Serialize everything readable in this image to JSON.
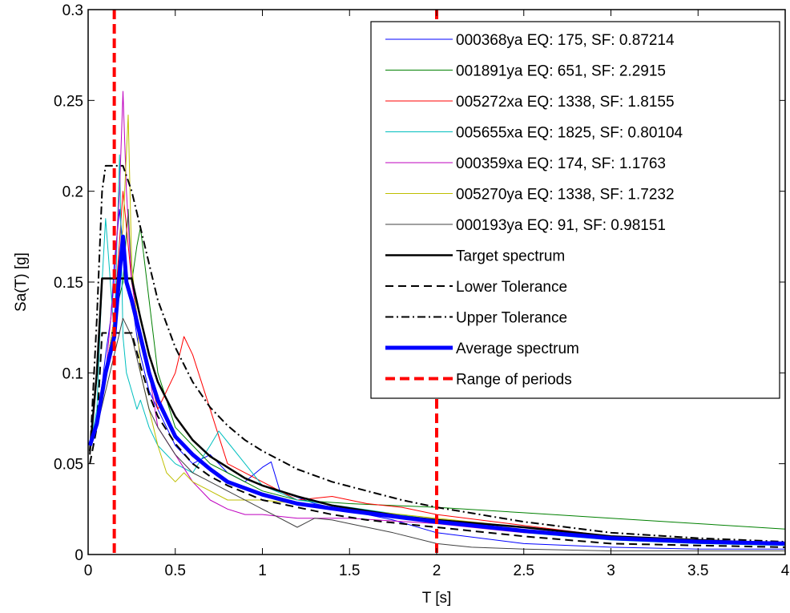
{
  "chart_data": {
    "type": "line",
    "xlabel": "T [s]",
    "ylabel": "Sa(T) [g]",
    "xlim": [
      0,
      4
    ],
    "ylim": [
      0,
      0.3
    ],
    "x_ticks": [
      0,
      0.5,
      1,
      1.5,
      2,
      2.5,
      3,
      3.5,
      4
    ],
    "x_tick_labels": [
      "0",
      "0.5",
      "1",
      "1.5",
      "2",
      "2.5",
      "3",
      "3.5",
      "4"
    ],
    "y_ticks": [
      0,
      0.05,
      0.1,
      0.15,
      0.2,
      0.25,
      0.3
    ],
    "y_tick_labels": [
      "0",
      "0.05",
      "0.1",
      "0.15",
      "0.2",
      "0.25",
      "0.3"
    ],
    "grid": false,
    "legend_position": "top-right",
    "series": [
      {
        "name": "000368ya EQ: 175, SF: 0.87214",
        "color": "#0000ff",
        "style": "solid",
        "width": 1,
        "x": [
          0.01,
          0.05,
          0.1,
          0.13,
          0.15,
          0.18,
          0.2,
          0.22,
          0.25,
          0.28,
          0.3,
          0.35,
          0.4,
          0.45,
          0.5,
          0.55,
          0.6,
          0.7,
          0.8,
          0.9,
          1.0,
          1.05,
          1.1,
          1.3,
          1.5,
          1.75,
          2.0,
          2.5,
          3.0,
          3.5,
          4.0
        ],
        "y": [
          0.06,
          0.07,
          0.11,
          0.13,
          0.16,
          0.19,
          0.17,
          0.15,
          0.14,
          0.12,
          0.11,
          0.09,
          0.08,
          0.07,
          0.06,
          0.055,
          0.05,
          0.055,
          0.045,
          0.04,
          0.048,
          0.051,
          0.035,
          0.028,
          0.024,
          0.019,
          0.012,
          0.006,
          0.004,
          0.003,
          0.003
        ]
      },
      {
        "name": "001891ya EQ: 651, SF: 2.2915",
        "color": "#008000",
        "style": "solid",
        "width": 1,
        "x": [
          0.01,
          0.05,
          0.1,
          0.15,
          0.2,
          0.23,
          0.25,
          0.28,
          0.3,
          0.35,
          0.4,
          0.5,
          0.6,
          0.7,
          0.8,
          1.0,
          1.2,
          1.5,
          2.0,
          2.5,
          3.0,
          3.5,
          4.0
        ],
        "y": [
          0.06,
          0.075,
          0.1,
          0.13,
          0.15,
          0.19,
          0.15,
          0.17,
          0.18,
          0.14,
          0.1,
          0.07,
          0.06,
          0.05,
          0.045,
          0.035,
          0.03,
          0.028,
          0.026,
          0.023,
          0.02,
          0.017,
          0.014
        ]
      },
      {
        "name": "005272xa EQ: 1338, SF: 1.8155",
        "color": "#ff0000",
        "style": "solid",
        "width": 1,
        "x": [
          0.01,
          0.05,
          0.1,
          0.15,
          0.2,
          0.25,
          0.3,
          0.35,
          0.4,
          0.45,
          0.5,
          0.55,
          0.6,
          0.7,
          0.8,
          1.0,
          1.2,
          1.4,
          1.6,
          1.8,
          2.0,
          2.5,
          3.0,
          3.5,
          4.0
        ],
        "y": [
          0.06,
          0.07,
          0.1,
          0.13,
          0.2,
          0.15,
          0.12,
          0.1,
          0.08,
          0.09,
          0.1,
          0.12,
          0.11,
          0.08,
          0.05,
          0.04,
          0.03,
          0.032,
          0.028,
          0.026,
          0.022,
          0.016,
          0.01,
          0.008,
          0.006
        ]
      },
      {
        "name": "005655xa EQ: 1825, SF: 0.80104",
        "color": "#00bfbf",
        "style": "solid",
        "width": 1,
        "x": [
          0.01,
          0.05,
          0.08,
          0.1,
          0.12,
          0.15,
          0.18,
          0.2,
          0.22,
          0.25,
          0.28,
          0.3,
          0.35,
          0.4,
          0.5,
          0.6,
          0.7,
          0.75,
          0.8,
          0.9,
          1.0,
          1.2,
          1.5,
          2.0,
          2.5,
          3.0,
          3.5,
          4.0
        ],
        "y": [
          0.06,
          0.08,
          0.15,
          0.185,
          0.16,
          0.12,
          0.22,
          0.12,
          0.1,
          0.09,
          0.08,
          0.085,
          0.07,
          0.06,
          0.05,
          0.045,
          0.06,
          0.068,
          0.062,
          0.05,
          0.038,
          0.03,
          0.026,
          0.019,
          0.012,
          0.008,
          0.006,
          0.005
        ]
      },
      {
        "name": "000359xa EQ: 174, SF: 1.1763",
        "color": "#bf00bf",
        "style": "solid",
        "width": 1,
        "x": [
          0.01,
          0.05,
          0.1,
          0.15,
          0.18,
          0.2,
          0.22,
          0.25,
          0.3,
          0.35,
          0.4,
          0.5,
          0.6,
          0.7,
          0.8,
          0.9,
          1.0,
          1.2,
          1.5,
          2.0,
          2.5,
          3.0,
          3.5,
          4.0
        ],
        "y": [
          0.06,
          0.07,
          0.1,
          0.15,
          0.2,
          0.255,
          0.2,
          0.15,
          0.12,
          0.1,
          0.07,
          0.055,
          0.04,
          0.03,
          0.025,
          0.022,
          0.022,
          0.02,
          0.02,
          0.017,
          0.012,
          0.009,
          0.007,
          0.006
        ]
      },
      {
        "name": "005270ya EQ: 1338, SF: 1.7232",
        "color": "#bfbf00",
        "style": "solid",
        "width": 1,
        "x": [
          0.01,
          0.05,
          0.1,
          0.15,
          0.2,
          0.23,
          0.25,
          0.28,
          0.3,
          0.35,
          0.4,
          0.45,
          0.5,
          0.55,
          0.6,
          0.7,
          0.8,
          1.0,
          1.2,
          1.5,
          2.0,
          2.5,
          3.0,
          3.5,
          4.0
        ],
        "y": [
          0.06,
          0.07,
          0.1,
          0.13,
          0.18,
          0.242,
          0.16,
          0.13,
          0.1,
          0.08,
          0.06,
          0.045,
          0.04,
          0.045,
          0.04,
          0.035,
          0.03,
          0.03,
          0.028,
          0.025,
          0.02,
          0.015,
          0.01,
          0.008,
          0.006
        ]
      },
      {
        "name": "000193ya EQ: 91, SF: 0.98151",
        "color": "#404040",
        "style": "solid",
        "width": 1,
        "x": [
          0.01,
          0.05,
          0.1,
          0.15,
          0.2,
          0.25,
          0.3,
          0.35,
          0.4,
          0.5,
          0.6,
          0.7,
          0.8,
          1.0,
          1.2,
          1.3,
          1.4,
          1.5,
          1.75,
          2.0,
          2.2,
          2.5,
          3.0,
          3.5,
          4.0
        ],
        "y": [
          0.06,
          0.07,
          0.09,
          0.11,
          0.13,
          0.12,
          0.1,
          0.08,
          0.07,
          0.055,
          0.045,
          0.04,
          0.035,
          0.025,
          0.015,
          0.02,
          0.019,
          0.017,
          0.012,
          0.006,
          0.004,
          0.003,
          0.002,
          0.002,
          0.002
        ]
      },
      {
        "name": "Target spectrum",
        "color": "#000000",
        "style": "solid",
        "width": 2.5,
        "x": [
          0.01,
          0.05,
          0.08,
          0.1,
          0.15,
          0.2,
          0.25,
          0.3,
          0.35,
          0.4,
          0.5,
          0.6,
          0.7,
          0.8,
          0.9,
          1.0,
          1.2,
          1.4,
          1.6,
          1.8,
          2.0,
          2.5,
          3.0,
          3.5,
          4.0
        ],
        "y": [
          0.057,
          0.1,
          0.152,
          0.152,
          0.152,
          0.152,
          0.152,
          0.13,
          0.11,
          0.095,
          0.076,
          0.063,
          0.054,
          0.048,
          0.042,
          0.038,
          0.032,
          0.027,
          0.024,
          0.021,
          0.019,
          0.015,
          0.01,
          0.008,
          0.006
        ]
      },
      {
        "name": "Lower Tolerance",
        "color": "#000000",
        "style": "dashed",
        "width": 2,
        "x": [
          0.01,
          0.05,
          0.08,
          0.1,
          0.15,
          0.2,
          0.25,
          0.3,
          0.35,
          0.4,
          0.5,
          0.6,
          0.7,
          0.8,
          0.9,
          1.0,
          1.2,
          1.4,
          1.6,
          1.8,
          2.0,
          2.5,
          3.0,
          3.5,
          4.0
        ],
        "y": [
          0.05,
          0.07,
          0.122,
          0.122,
          0.122,
          0.122,
          0.122,
          0.104,
          0.088,
          0.076,
          0.061,
          0.05,
          0.043,
          0.038,
          0.034,
          0.03,
          0.026,
          0.022,
          0.019,
          0.017,
          0.015,
          0.01,
          0.006,
          0.005,
          0.004
        ]
      },
      {
        "name": "Upper Tolerance",
        "color": "#000000",
        "style": "dashdot",
        "width": 2,
        "x": [
          0.01,
          0.05,
          0.08,
          0.1,
          0.15,
          0.2,
          0.25,
          0.3,
          0.35,
          0.4,
          0.5,
          0.6,
          0.7,
          0.8,
          0.9,
          1.0,
          1.2,
          1.4,
          1.6,
          1.8,
          2.0,
          2.5,
          3.0,
          3.5,
          4.0
        ],
        "y": [
          0.055,
          0.13,
          0.2,
          0.214,
          0.214,
          0.214,
          0.2,
          0.18,
          0.16,
          0.14,
          0.114,
          0.095,
          0.081,
          0.071,
          0.063,
          0.057,
          0.047,
          0.04,
          0.035,
          0.03,
          0.026,
          0.018,
          0.012,
          0.009,
          0.007
        ]
      },
      {
        "name": "Average spectrum",
        "color": "#0000ff",
        "style": "solid",
        "width": 5,
        "x": [
          0.01,
          0.05,
          0.1,
          0.15,
          0.18,
          0.2,
          0.22,
          0.25,
          0.3,
          0.35,
          0.4,
          0.5,
          0.6,
          0.7,
          0.8,
          1.0,
          1.2,
          1.5,
          2.0,
          2.5,
          3.0,
          3.5,
          4.0
        ],
        "y": [
          0.06,
          0.072,
          0.1,
          0.12,
          0.155,
          0.175,
          0.15,
          0.14,
          0.12,
          0.1,
          0.085,
          0.065,
          0.055,
          0.047,
          0.04,
          0.033,
          0.028,
          0.024,
          0.018,
          0.013,
          0.009,
          0.007,
          0.006
        ]
      },
      {
        "name": "Range of periods",
        "color": "#ff0000",
        "style": "dashed-red",
        "width": 4,
        "vertical_lines_x": [
          0.15,
          2.0
        ]
      }
    ]
  }
}
